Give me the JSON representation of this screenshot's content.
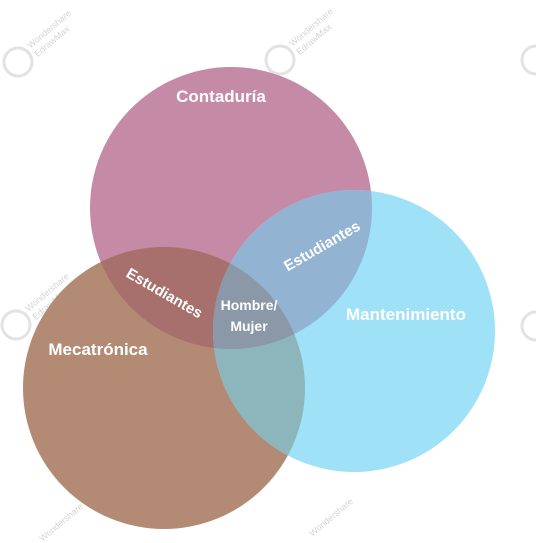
{
  "diagram": {
    "circles": {
      "contaduria": {
        "label": "Contaduría",
        "color": "#C48AA6"
      },
      "mecatronica": {
        "label": "Mecatrónica",
        "color": "#B38A73"
      },
      "mantenimiento": {
        "label": "Mantenimiento",
        "color": "#9FE1F7"
      }
    },
    "overlaps": {
      "contaduria_mecatronica": {
        "label": "Estudiantes",
        "color": "#A8706C"
      },
      "contaduria_mantenimiento": {
        "label": "Estudiantes",
        "color": "#93B3D2"
      },
      "center": {
        "line1": "Hombre/",
        "line2": "Mujer"
      }
    }
  },
  "watermark": {
    "line1": "Wondershare",
    "line2": "EdrawMax",
    "icon": "edraw-logo-icon"
  }
}
